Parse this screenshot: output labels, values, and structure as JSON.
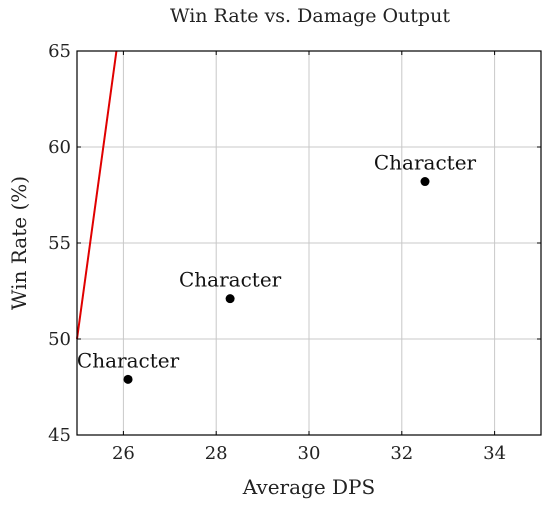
{
  "chart_data": {
    "type": "scatter",
    "title": "Win Rate vs. Damage Output",
    "xlabel": "Average DPS",
    "ylabel": "Win Rate (%)",
    "xlim": [
      25,
      35
    ],
    "ylim": [
      45,
      65
    ],
    "xticks": [
      26,
      28,
      30,
      32,
      34
    ],
    "yticks": [
      45,
      50,
      55,
      60,
      65
    ],
    "grid": true,
    "legend": "none",
    "points": [
      {
        "label": "Character",
        "x": 26.1,
        "y": 47.9
      },
      {
        "label": "Character",
        "x": 28.3,
        "y": 52.1
      },
      {
        "label": "Character",
        "x": 32.5,
        "y": 58.2
      }
    ],
    "trend_line": {
      "x": [
        25,
        25.85
      ],
      "y": [
        50,
        65
      ]
    },
    "colors": {
      "points": "#000000",
      "trend_line": "#e00000",
      "grid": "#c8c8c8"
    }
  }
}
